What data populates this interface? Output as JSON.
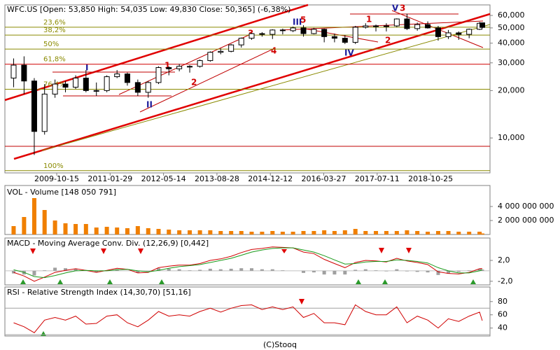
{
  "chart_data": [
    {
      "type": "candlestick",
      "title": "WFC.US [Open: 53,850 High: 54,035 Low: 49,830 Close: 50,365] (-6,38%)",
      "x": [
        "2008-09-30",
        "2008-12-31",
        "2009-03-31",
        "2009-06-30",
        "2009-09-30",
        "2009-12-31",
        "2010-03-31",
        "2010-06-30",
        "2010-09-30",
        "2010-12-31",
        "2011-03-31",
        "2011-06-30",
        "2011-09-30",
        "2011-12-31",
        "2012-03-31",
        "2012-06-30",
        "2012-09-30",
        "2012-12-31",
        "2013-03-31",
        "2013-06-30",
        "2013-09-30",
        "2013-12-31",
        "2014-03-31",
        "2014-06-30",
        "2014-09-30",
        "2014-12-31",
        "2015-03-31",
        "2015-06-30",
        "2015-09-30",
        "2015-12-31",
        "2016-03-31",
        "2016-06-30",
        "2016-09-30",
        "2016-12-31",
        "2017-03-31",
        "2017-06-30",
        "2017-09-30",
        "2017-12-31",
        "2018-03-31",
        "2018-06-30",
        "2018-09-30",
        "2018-12-31",
        "2019-03-31",
        "2019-06-30",
        "2019-09-30",
        "2019-12-31",
        "2020-01-24"
      ],
      "open": [
        24,
        29,
        23,
        11,
        19,
        22,
        21,
        24,
        20,
        20,
        24.5,
        25.5,
        22.5,
        19.5,
        22.5,
        28,
        27.5,
        28.5,
        28.5,
        31,
        35,
        35.5,
        39,
        43,
        46,
        45.5,
        48.5,
        48,
        50,
        46,
        49,
        44,
        43,
        40.5,
        50.5,
        51.5,
        51.5,
        51.5,
        57,
        49.5,
        52.5,
        50,
        44,
        46.5,
        45.5,
        49,
        53.85
      ],
      "high": [
        32,
        33,
        24,
        22,
        23.5,
        23,
        25,
        27,
        22.5,
        25,
        27,
        26,
        23.5,
        23,
        28.5,
        28.5,
        29.5,
        29,
        31.5,
        35.5,
        37,
        39.5,
        43.5,
        46.5,
        47,
        49,
        49.5,
        51,
        52,
        50,
        49.5,
        46,
        45,
        51.5,
        53.5,
        52.5,
        53.5,
        57.5,
        61.5,
        54,
        55,
        51.5,
        48.5,
        47.5,
        49.5,
        54.5,
        54.035
      ],
      "low": [
        21,
        19,
        7.8,
        10.5,
        18,
        19.5,
        20.5,
        19.5,
        18.5,
        19.5,
        24,
        21.5,
        18.5,
        18,
        22,
        25,
        26.5,
        26,
        28,
        30.5,
        34,
        35,
        37.5,
        42,
        44,
        42.5,
        45.5,
        47,
        44,
        45.5,
        40.5,
        40.5,
        39.5,
        39.5,
        49.5,
        47.5,
        47.5,
        50.5,
        48.5,
        48,
        49.5,
        41.5,
        42.5,
        42,
        43,
        48.5,
        49.83
      ],
      "close": [
        29,
        23,
        11,
        19,
        22,
        21,
        24,
        20,
        20,
        24.5,
        25.5,
        22.5,
        19.5,
        22.5,
        28,
        27.5,
        28.5,
        28.5,
        31,
        35,
        35.5,
        39,
        43,
        46,
        45.5,
        48.5,
        48,
        50,
        46,
        49,
        44,
        43,
        40.5,
        50.5,
        51.5,
        51.5,
        51.5,
        57,
        49.5,
        52.5,
        50,
        44,
        46.5,
        45.5,
        49,
        53.5,
        50.365
      ],
      "xlim": [
        "2008-07-15",
        "2020-04-01"
      ],
      "xticks": [
        "2009-10-15",
        "2011-01-29",
        "2012-05-14",
        "2013-08-28",
        "2014-12-12",
        "2016-03-27",
        "2017-07-11",
        "2018-10-25"
      ],
      "ylim": [
        6,
        70
      ],
      "log_scale": true,
      "yticks": [
        {
          "value": 60,
          "label": "60,000"
        },
        {
          "value": 50,
          "label": "50,000"
        },
        {
          "value": 40,
          "label": "40,000"
        },
        {
          "value": 30,
          "label": "30,000"
        },
        {
          "value": 20,
          "label": "20,000"
        },
        {
          "value": 10,
          "label": "10,000"
        }
      ],
      "fib_levels": [
        {
          "label": "23,6%",
          "value": 50.5
        },
        {
          "label": "38,2%",
          "value": 45
        },
        {
          "label": "50%",
          "value": 36.7
        },
        {
          "label": "61,8%",
          "value": 29.4
        },
        {
          "label": "76,4%",
          "value": 20.4
        },
        {
          "label": "100%",
          "value": 6.2
        }
      ],
      "annotations": [
        "I",
        "II",
        "III",
        "IV",
        "V",
        "1",
        "2",
        "3",
        "4",
        "5",
        "1",
        "2",
        "3"
      ]
    },
    {
      "type": "bar",
      "title": "VOL - Volume [148 050 791]",
      "color": "#f07f00",
      "values": [
        1200000000,
        2500000000,
        5200000000,
        3500000000,
        2000000000,
        1600000000,
        1500000000,
        1500000000,
        1000000000,
        1100000000,
        1000000000,
        900000000,
        1200000000,
        900000000,
        800000000,
        700000000,
        600000000,
        600000000,
        600000000,
        600000000,
        500000000,
        500000000,
        500000000,
        400000000,
        400000000,
        500000000,
        400000000,
        400000000,
        500000000,
        500000000,
        600000000,
        500000000,
        600000000,
        800000000,
        500000000,
        500000000,
        500000000,
        500000000,
        600000000,
        500000000,
        400000000,
        500000000,
        500000000,
        400000000,
        400000000,
        400000000,
        148050791
      ],
      "ylim": [
        0,
        7000000000
      ],
      "yticks": [
        {
          "value": 4000000000,
          "label": "4 000 000 000"
        },
        {
          "value": 2000000000,
          "label": "2 000 000 000"
        }
      ]
    },
    {
      "type": "line",
      "title": "MACD - Moving Average Conv. Div. (12,26,9) [0,442]",
      "series": [
        {
          "name": "MACD",
          "color": "#d00000",
          "values": [
            -0.3,
            -1.0,
            -2.0,
            -1.2,
            -0.3,
            0.1,
            0.4,
            0.1,
            -0.3,
            0.1,
            0.5,
            0.3,
            -0.4,
            -0.3,
            0.6,
            0.9,
            1.1,
            1.1,
            1.4,
            2.0,
            2.3,
            2.8,
            3.5,
            4.1,
            4.3,
            4.6,
            4.5,
            4.4,
            3.6,
            3.3,
            2.2,
            1.4,
            0.6,
            1.6,
            2.0,
            1.9,
            1.7,
            2.4,
            1.9,
            1.6,
            1.2,
            -0.2,
            -0.5,
            -0.6,
            -0.3,
            0.4,
            0.442
          ]
        },
        {
          "name": "Signal",
          "color": "#1a9a1a",
          "values": [
            0.2,
            -0.3,
            -1.1,
            -1.3,
            -0.9,
            -0.4,
            0.0,
            0.1,
            0.0,
            0.0,
            0.2,
            0.3,
            0.0,
            -0.2,
            0.1,
            0.5,
            0.8,
            1.0,
            1.2,
            1.6,
            2.0,
            2.4,
            3.0,
            3.6,
            4.0,
            4.3,
            4.4,
            4.4,
            4.0,
            3.6,
            2.9,
            2.1,
            1.3,
            1.4,
            1.7,
            1.8,
            1.8,
            2.1,
            2.0,
            1.8,
            1.5,
            0.6,
            0.0,
            -0.4,
            -0.4,
            0.0,
            0.2
          ]
        }
      ],
      "histogram": {
        "color": "#a0a0a0",
        "values": [
          -0.5,
          -0.7,
          -0.9,
          0.1,
          0.6,
          0.5,
          0.4,
          0.0,
          -0.3,
          0.1,
          0.3,
          0.0,
          -0.4,
          -0.1,
          0.5,
          0.4,
          0.3,
          0.1,
          0.2,
          0.4,
          0.3,
          0.4,
          0.5,
          0.5,
          0.3,
          0.3,
          0.1,
          0.0,
          -0.4,
          -0.3,
          -0.7,
          -0.7,
          -0.7,
          0.2,
          0.3,
          0.1,
          -0.1,
          0.3,
          -0.1,
          -0.2,
          -0.3,
          -0.8,
          -0.5,
          -0.2,
          0.1,
          0.4,
          0.242
        ]
      },
      "ylim": [
        -2.7,
        6.3
      ],
      "yticks": [
        {
          "value": 2,
          "label": "2,0"
        },
        {
          "value": -2,
          "label": "-2,0"
        }
      ]
    },
    {
      "type": "line",
      "title": "RSI - Relative Strength Index (14,30,70) [51,16]",
      "series": [
        {
          "name": "RSI",
          "color": "#d00000",
          "values": [
            48,
            42,
            33,
            52,
            56,
            52,
            58,
            46,
            47,
            58,
            60,
            48,
            42,
            52,
            65,
            58,
            60,
            58,
            65,
            70,
            64,
            70,
            74,
            75,
            68,
            72,
            68,
            72,
            56,
            62,
            48,
            48,
            45,
            75,
            65,
            60,
            60,
            72,
            48,
            58,
            52,
            40,
            54,
            50,
            58,
            64,
            51.16
          ]
        }
      ],
      "levels": [
        30,
        70
      ],
      "ylim": [
        28,
        102
      ],
      "yticks": [
        80,
        60,
        40
      ]
    }
  ],
  "footer": "(C)Stooq"
}
